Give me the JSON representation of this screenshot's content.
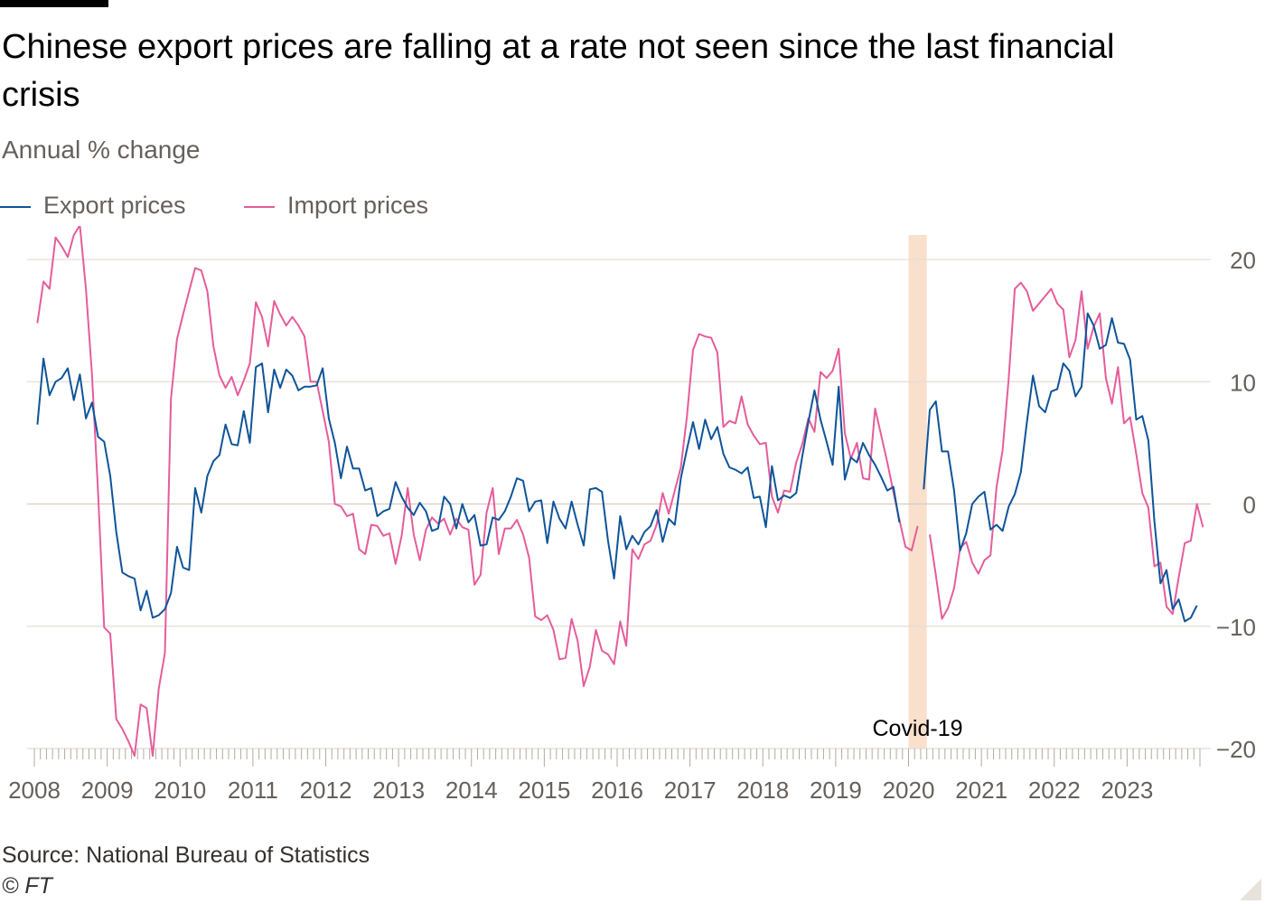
{
  "header": {
    "title": "Chinese export prices are falling at a rate not seen since the last financial crisis",
    "subtitle": "Annual % change"
  },
  "legend": {
    "export_label": "Export prices",
    "import_label": "Import prices"
  },
  "footer": {
    "source": "Source: National Bureau of Statistics",
    "copyright": "© FT"
  },
  "colors": {
    "export": "#0f5499",
    "import": "#e55d9a",
    "highlight": "#f9e0cc",
    "gridline": "#e4dcd6",
    "zeroline": "#d7cbc2"
  },
  "chart_data": {
    "type": "line",
    "x_start": "2008-01",
    "x_frequency": "monthly",
    "xlim": [
      "2008-01",
      "2023-12"
    ],
    "ylim": [
      -20,
      22
    ],
    "y_ticks": [
      20,
      10,
      0,
      -10,
      -20
    ],
    "y_axis_side": "right",
    "x_tick_labels": [
      "2008",
      "2009",
      "2010",
      "2011",
      "2012",
      "2013",
      "2014",
      "2015",
      "2016",
      "2017",
      "2018",
      "2019",
      "2020",
      "2021",
      "2022",
      "2023"
    ],
    "gridlines": true,
    "legend_position": "top-left",
    "annotation": {
      "label": "Covid-19",
      "span": [
        "2020-01",
        "2020-03"
      ]
    },
    "series": [
      {
        "name": "Export prices",
        "values": [
          6.5,
          11.9,
          8.9,
          10.0,
          10.3,
          11.1,
          8.5,
          10.6,
          7.0,
          8.3,
          5.5,
          5.1,
          2.3,
          -2.3,
          -5.6,
          -5.9,
          -6.1,
          -8.7,
          -7.1,
          -9.3,
          -9.1,
          -8.6,
          -7.3,
          -3.5,
          -5.2,
          -5.4,
          1.3,
          -0.7,
          2.3,
          3.5,
          4.0,
          6.5,
          4.9,
          4.8,
          7.6,
          5.0,
          11.2,
          11.5,
          7.5,
          11.0,
          9.5,
          11.0,
          10.5,
          9.3,
          9.6,
          9.6,
          9.7,
          11.1,
          7.0,
          5.0,
          2.1,
          4.7,
          2.9,
          2.9,
          1.1,
          1.3,
          -1.0,
          -0.6,
          -0.4,
          1.8,
          0.6,
          -0.3,
          -0.9,
          0.1,
          -0.6,
          -2.2,
          -2.0,
          0.6,
          0.0,
          -2.0,
          0.0,
          -1.5,
          -0.9,
          -3.4,
          -3.3,
          -1.1,
          -1.3,
          -0.6,
          0.6,
          2.1,
          1.9,
          -0.6,
          0.2,
          0.3,
          -3.2,
          0.2,
          -1.2,
          -2.0,
          0.2,
          -1.7,
          -3.4,
          1.2,
          1.3,
          1.0,
          -3.0,
          -6.1,
          -1.0,
          -3.7,
          -2.6,
          -3.3,
          -2.3,
          -1.8,
          -0.5,
          -3.1,
          -1.2,
          -1.7,
          2.1,
          4.5,
          6.7,
          4.5,
          6.9,
          5.3,
          6.3,
          4.1,
          3.0,
          2.8,
          2.5,
          3.0,
          0.5,
          0.6,
          -1.9,
          3.1,
          0.3,
          0.7,
          0.5,
          0.9,
          3.9,
          6.7,
          9.3,
          6.9,
          5.1,
          3.2,
          9.6,
          2.0,
          3.8,
          3.4,
          5.0,
          4.0,
          3.2,
          2.2,
          1.1,
          1.4,
          -1.5,
          null,
          null,
          null,
          1.2,
          7.7,
          8.4,
          4.3,
          4.3,
          1.1,
          -3.8,
          -2.4,
          0.0,
          0.6,
          1.0,
          -2.1,
          -1.7,
          -2.2,
          -0.2,
          0.8,
          2.6,
          6.7,
          10.5,
          8.0,
          7.5,
          9.2,
          9.4,
          11.5,
          10.9,
          8.8,
          9.6,
          15.6,
          14.6,
          12.7,
          13.0,
          15.2,
          13.2,
          13.1,
          11.8,
          6.9,
          7.2,
          5.2,
          -1.4,
          -6.5,
          -5.4,
          -8.6,
          -7.8,
          -9.6,
          -9.3,
          -8.3
        ]
      },
      {
        "name": "Import prices",
        "values": [
          14.8,
          18.2,
          17.6,
          21.8,
          21.1,
          20.2,
          22.0,
          22.8,
          17.6,
          10.6,
          1.0,
          -10.1,
          -10.6,
          -17.6,
          -18.4,
          -19.4,
          -20.6,
          -16.4,
          -16.7,
          -20.6,
          -15.1,
          -12.2,
          8.6,
          13.5,
          15.5,
          17.4,
          19.3,
          19.1,
          17.4,
          12.9,
          10.5,
          9.5,
          10.4,
          8.9,
          10.1,
          11.5,
          16.5,
          15.3,
          12.9,
          16.6,
          15.5,
          14.6,
          15.3,
          14.6,
          13.7,
          10.0,
          10.0,
          7.6,
          5.1,
          0.0,
          -0.2,
          -1.0,
          -0.8,
          -3.7,
          -4.1,
          -1.7,
          -1.8,
          -2.6,
          -2.4,
          -4.9,
          -2.6,
          1.3,
          -2.5,
          -4.6,
          -2.1,
          -1.1,
          -1.6,
          -1.2,
          -2.5,
          -1.2,
          -1.9,
          -2.1,
          -6.6,
          -5.8,
          -0.7,
          1.3,
          -4.1,
          -2.0,
          -2.0,
          -1.3,
          -2.5,
          -4.4,
          -9.2,
          -9.5,
          -9.1,
          -10.3,
          -12.7,
          -12.6,
          -9.4,
          -11.2,
          -14.9,
          -13.3,
          -10.3,
          -12.0,
          -12.3,
          -13.1,
          -9.6,
          -11.6,
          -3.7,
          -4.5,
          -3.3,
          -3.0,
          -1.7,
          0.9,
          -0.8,
          1.1,
          3.0,
          7.2,
          12.6,
          13.9,
          13.7,
          13.6,
          12.4,
          6.3,
          6.8,
          6.6,
          8.8,
          6.5,
          5.6,
          4.9,
          5.0,
          0.6,
          -0.7,
          1.1,
          1.0,
          3.4,
          4.9,
          7.0,
          5.9,
          10.8,
          10.3,
          10.9,
          12.7,
          5.8,
          3.7,
          5.0,
          2.1,
          2.0,
          7.8,
          5.6,
          3.4,
          1.0,
          -1.3,
          -3.5,
          -3.8,
          -1.8,
          null,
          -2.5,
          -5.8,
          -9.4,
          -8.5,
          -6.9,
          -3.6,
          -3.1,
          -4.8,
          -5.7,
          -4.6,
          -4.2,
          1.4,
          4.4,
          10.3,
          17.6,
          18.1,
          17.4,
          15.8,
          16.4,
          17.0,
          17.6,
          16.4,
          15.9,
          12.0,
          13.4,
          17.4,
          12.7,
          14.5,
          15.6,
          10.3,
          8.2,
          11.2,
          6.6,
          7.1,
          4.1,
          0.9,
          -0.3,
          -5.1,
          -4.8,
          -8.4,
          -9.0,
          -6.0,
          -3.2,
          -3.0,
          0.0,
          -1.9
        ]
      }
    ]
  }
}
